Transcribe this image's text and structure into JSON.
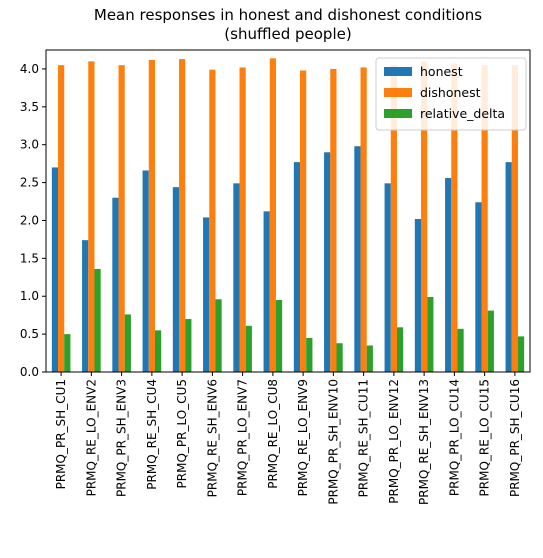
{
  "chart_data": {
    "type": "bar",
    "title": "Mean responses in honest and dishonest conditions",
    "subtitle": "(shuffled people)",
    "xlabel": "",
    "ylabel": "",
    "ylim": [
      0,
      4.25
    ],
    "yticks": [
      "0.0",
      "0.5",
      "1.0",
      "1.5",
      "2.0",
      "2.5",
      "3.0",
      "3.5",
      "4.0"
    ],
    "grid": false,
    "legend_position": "top-right",
    "categories": [
      "PRMQ_PR_SH_CU1",
      "PRMQ_RE_LO_ENV2",
      "PRMQ_PR_SH_ENV3",
      "PRMQ_RE_SH_CU4",
      "PRMQ_PR_LO_CU5",
      "PRMQ_RE_SH_ENV6",
      "PRMQ_PR_LO_ENV7",
      "PRMQ_RE_LO_CU8",
      "PRMQ_RE_LO_ENV9",
      "PRMQ_PR_SH_ENV10",
      "PRMQ_RE_SH_CU11",
      "PRMQ_PR_LO_ENV12",
      "PRMQ_RE_SH_ENV13",
      "PRMQ_PR_LO_CU14",
      "PRMQ_RE_LO_CU15",
      "PRMQ_PR_SH_CU16"
    ],
    "series": [
      {
        "name": "honest",
        "color": "#1f77b4",
        "values": [
          2.7,
          1.74,
          2.3,
          2.66,
          2.44,
          2.04,
          2.49,
          2.12,
          2.77,
          2.9,
          2.98,
          2.49,
          2.02,
          2.56,
          2.24,
          2.77
        ]
      },
      {
        "name": "dishonest",
        "color": "#ff7f0e",
        "values": [
          4.05,
          4.1,
          4.05,
          4.12,
          4.13,
          3.99,
          4.02,
          4.14,
          3.98,
          4.0,
          4.02,
          4.05,
          4.1,
          4.07,
          4.05,
          4.05
        ]
      },
      {
        "name": "relative_delta",
        "color": "#2ca02c",
        "values": [
          0.5,
          1.36,
          0.76,
          0.55,
          0.7,
          0.96,
          0.61,
          0.95,
          0.45,
          0.38,
          0.35,
          0.59,
          0.99,
          0.57,
          0.81,
          0.47
        ]
      }
    ]
  }
}
